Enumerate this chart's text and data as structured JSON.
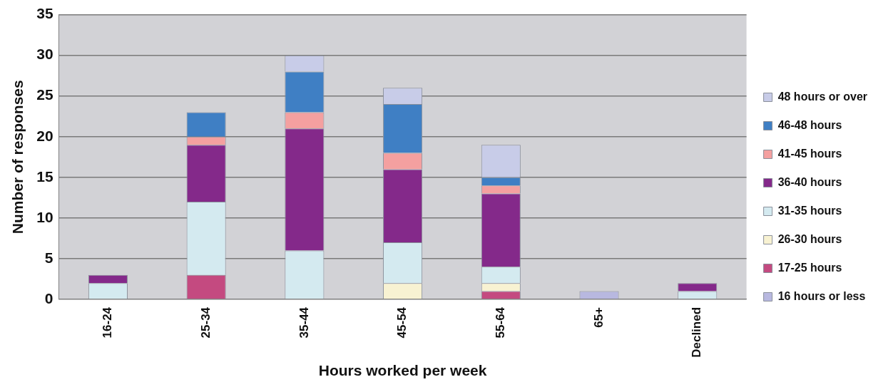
{
  "chart_data": {
    "type": "bar",
    "stacked": true,
    "xlabel": "Hours worked per week",
    "ylabel": "Number of responses",
    "categories": [
      "16-24",
      "25-34",
      "35-44",
      "45-54",
      "55-64",
      "65+",
      "Declined"
    ],
    "series": [
      {
        "name": "16 hours or less",
        "color": "#b8b8e0",
        "values": [
          0,
          0,
          0,
          0,
          0,
          1,
          0
        ]
      },
      {
        "name": "17-25 hours",
        "color": "#c44a80",
        "values": [
          0,
          3,
          0,
          0,
          1,
          0,
          0
        ]
      },
      {
        "name": "26-30 hours",
        "color": "#f8f2d2",
        "values": [
          0,
          0,
          0,
          2,
          1,
          0,
          0
        ]
      },
      {
        "name": "31-35 hours",
        "color": "#d4eaf0",
        "values": [
          2,
          9,
          6,
          5,
          2,
          0,
          1
        ]
      },
      {
        "name": "36-40 hours",
        "color": "#84298a",
        "values": [
          1,
          7,
          15,
          9,
          9,
          0,
          1
        ]
      },
      {
        "name": "41-45 hours",
        "color": "#f4a0a0",
        "values": [
          0,
          1,
          2,
          2,
          1,
          0,
          0
        ]
      },
      {
        "name": "46-48 hours",
        "color": "#3f7fc4",
        "values": [
          0,
          3,
          5,
          6,
          1,
          0,
          0
        ]
      },
      {
        "name": "48 hours or over",
        "color": "#c8cce8",
        "values": [
          0,
          0,
          2,
          2,
          4,
          0,
          0
        ]
      }
    ],
    "ylim": [
      0,
      35
    ],
    "yticks": [
      0,
      5,
      10,
      15,
      20,
      25,
      30,
      35
    ],
    "grid": "y",
    "legend": "right"
  }
}
